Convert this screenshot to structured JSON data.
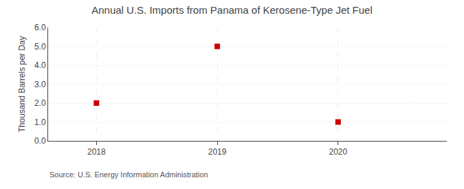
{
  "chart_data": {
    "type": "scatter",
    "title": "Annual U.S. Imports from Panama of Kerosene-Type Jet Fuel",
    "ylabel": "Thousand Barrels per Day",
    "annotations": [
      "Source: U.S. Energy Information Administration"
    ],
    "x": [
      2018,
      2019,
      2020
    ],
    "values": [
      2.0,
      5.0,
      1.0
    ],
    "color": "#cc0000",
    "marker": "square",
    "xlim": [
      2017.6,
      2020.9
    ],
    "xticks": [
      2018,
      2019,
      2020
    ],
    "ylim": [
      0.0,
      6.0
    ],
    "yticks": [
      {
        "value": 0.0,
        "label": "0.0"
      },
      {
        "value": 1.0,
        "label": "1.0"
      },
      {
        "value": 2.0,
        "label": "2.0"
      },
      {
        "value": 3.0,
        "label": "3.0"
      },
      {
        "value": 4.0,
        "label": "4.0"
      },
      {
        "value": 5.0,
        "label": "5.0"
      },
      {
        "value": 6.0,
        "label": "6.0"
      }
    ],
    "grid": true
  }
}
